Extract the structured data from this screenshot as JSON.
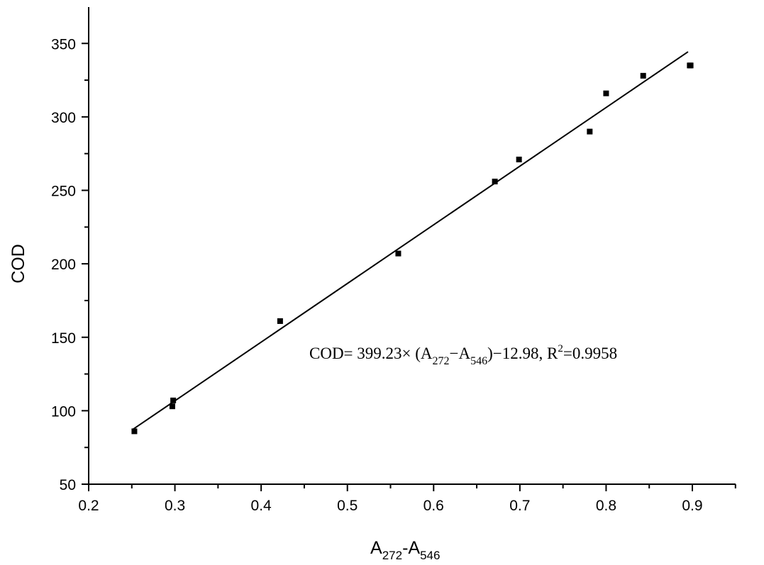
{
  "chart_data": {
    "type": "scatter",
    "x": [
      0.253,
      0.297,
      0.298,
      0.422,
      0.559,
      0.671,
      0.699,
      0.781,
      0.8,
      0.843,
      0.897,
      0.898
    ],
    "y": [
      86,
      103,
      107,
      161,
      207,
      256,
      271,
      290,
      316,
      328,
      335,
      335
    ],
    "fit_line": {
      "x": [
        0.25,
        0.895
      ],
      "y": [
        86.8,
        344.3
      ]
    },
    "xlim": [
      0.2,
      0.95
    ],
    "ylim": [
      50,
      375
    ],
    "x_ticks": [
      "0.2",
      "0.3",
      "0.4",
      "0.5",
      "0.6",
      "0.7",
      "0.8",
      "0.9"
    ],
    "y_ticks": [
      "50",
      "100",
      "150",
      "200",
      "250",
      "300",
      "350"
    ],
    "xlabel": {
      "main": "A",
      "sub1": "272",
      "mid": "-A",
      "sub2": "546"
    },
    "ylabel": "COD",
    "equation": {
      "p1": "COD= 399.23× (A",
      "s1": "272",
      "p2": "−A",
      "s2": "546",
      "p3": ")−12.98, R",
      "sup": "2",
      "p4": "=0.9958"
    },
    "grid": false,
    "marker_color": "#000000",
    "line_color": "#000000"
  }
}
